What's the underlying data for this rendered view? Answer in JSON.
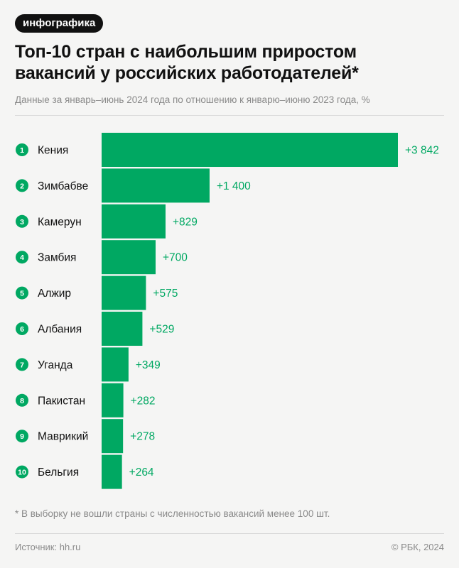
{
  "badge": "инфографика",
  "title_line1": "Топ-10 стран с наибольшим приростом",
  "title_line2": "вакансий у российских работодателей*",
  "subtitle": "Данные за январь–июнь 2024 года по отношению к январю–июню 2023 года, %",
  "footnote": "* В выборку не вошли страны с численностью вакансий менее 100 шт.",
  "source": "Источник: hh.ru",
  "copyright": "© РБК, 2024",
  "colors": {
    "bar": "#00a862",
    "label": "#00a862",
    "rank_circle": "#00a862"
  },
  "chart_data": {
    "type": "bar",
    "orientation": "horizontal",
    "ranks": [
      "1",
      "2",
      "3",
      "4",
      "5",
      "6",
      "7",
      "8",
      "9",
      "10"
    ],
    "categories": [
      "Кения",
      "Зимбабве",
      "Камерун",
      "Замбия",
      "Алжир",
      "Албания",
      "Уганда",
      "Пакистан",
      "Маврикий",
      "Бельгия"
    ],
    "values": [
      3842,
      1400,
      829,
      700,
      575,
      529,
      349,
      282,
      278,
      264
    ],
    "value_labels": [
      "+3 842",
      "+1 400",
      "+829",
      "+700",
      "+575",
      "+529",
      "+349",
      "+282",
      "+278",
      "+264"
    ],
    "xlim": [
      0,
      3842
    ],
    "grid": false,
    "legend": "none"
  }
}
